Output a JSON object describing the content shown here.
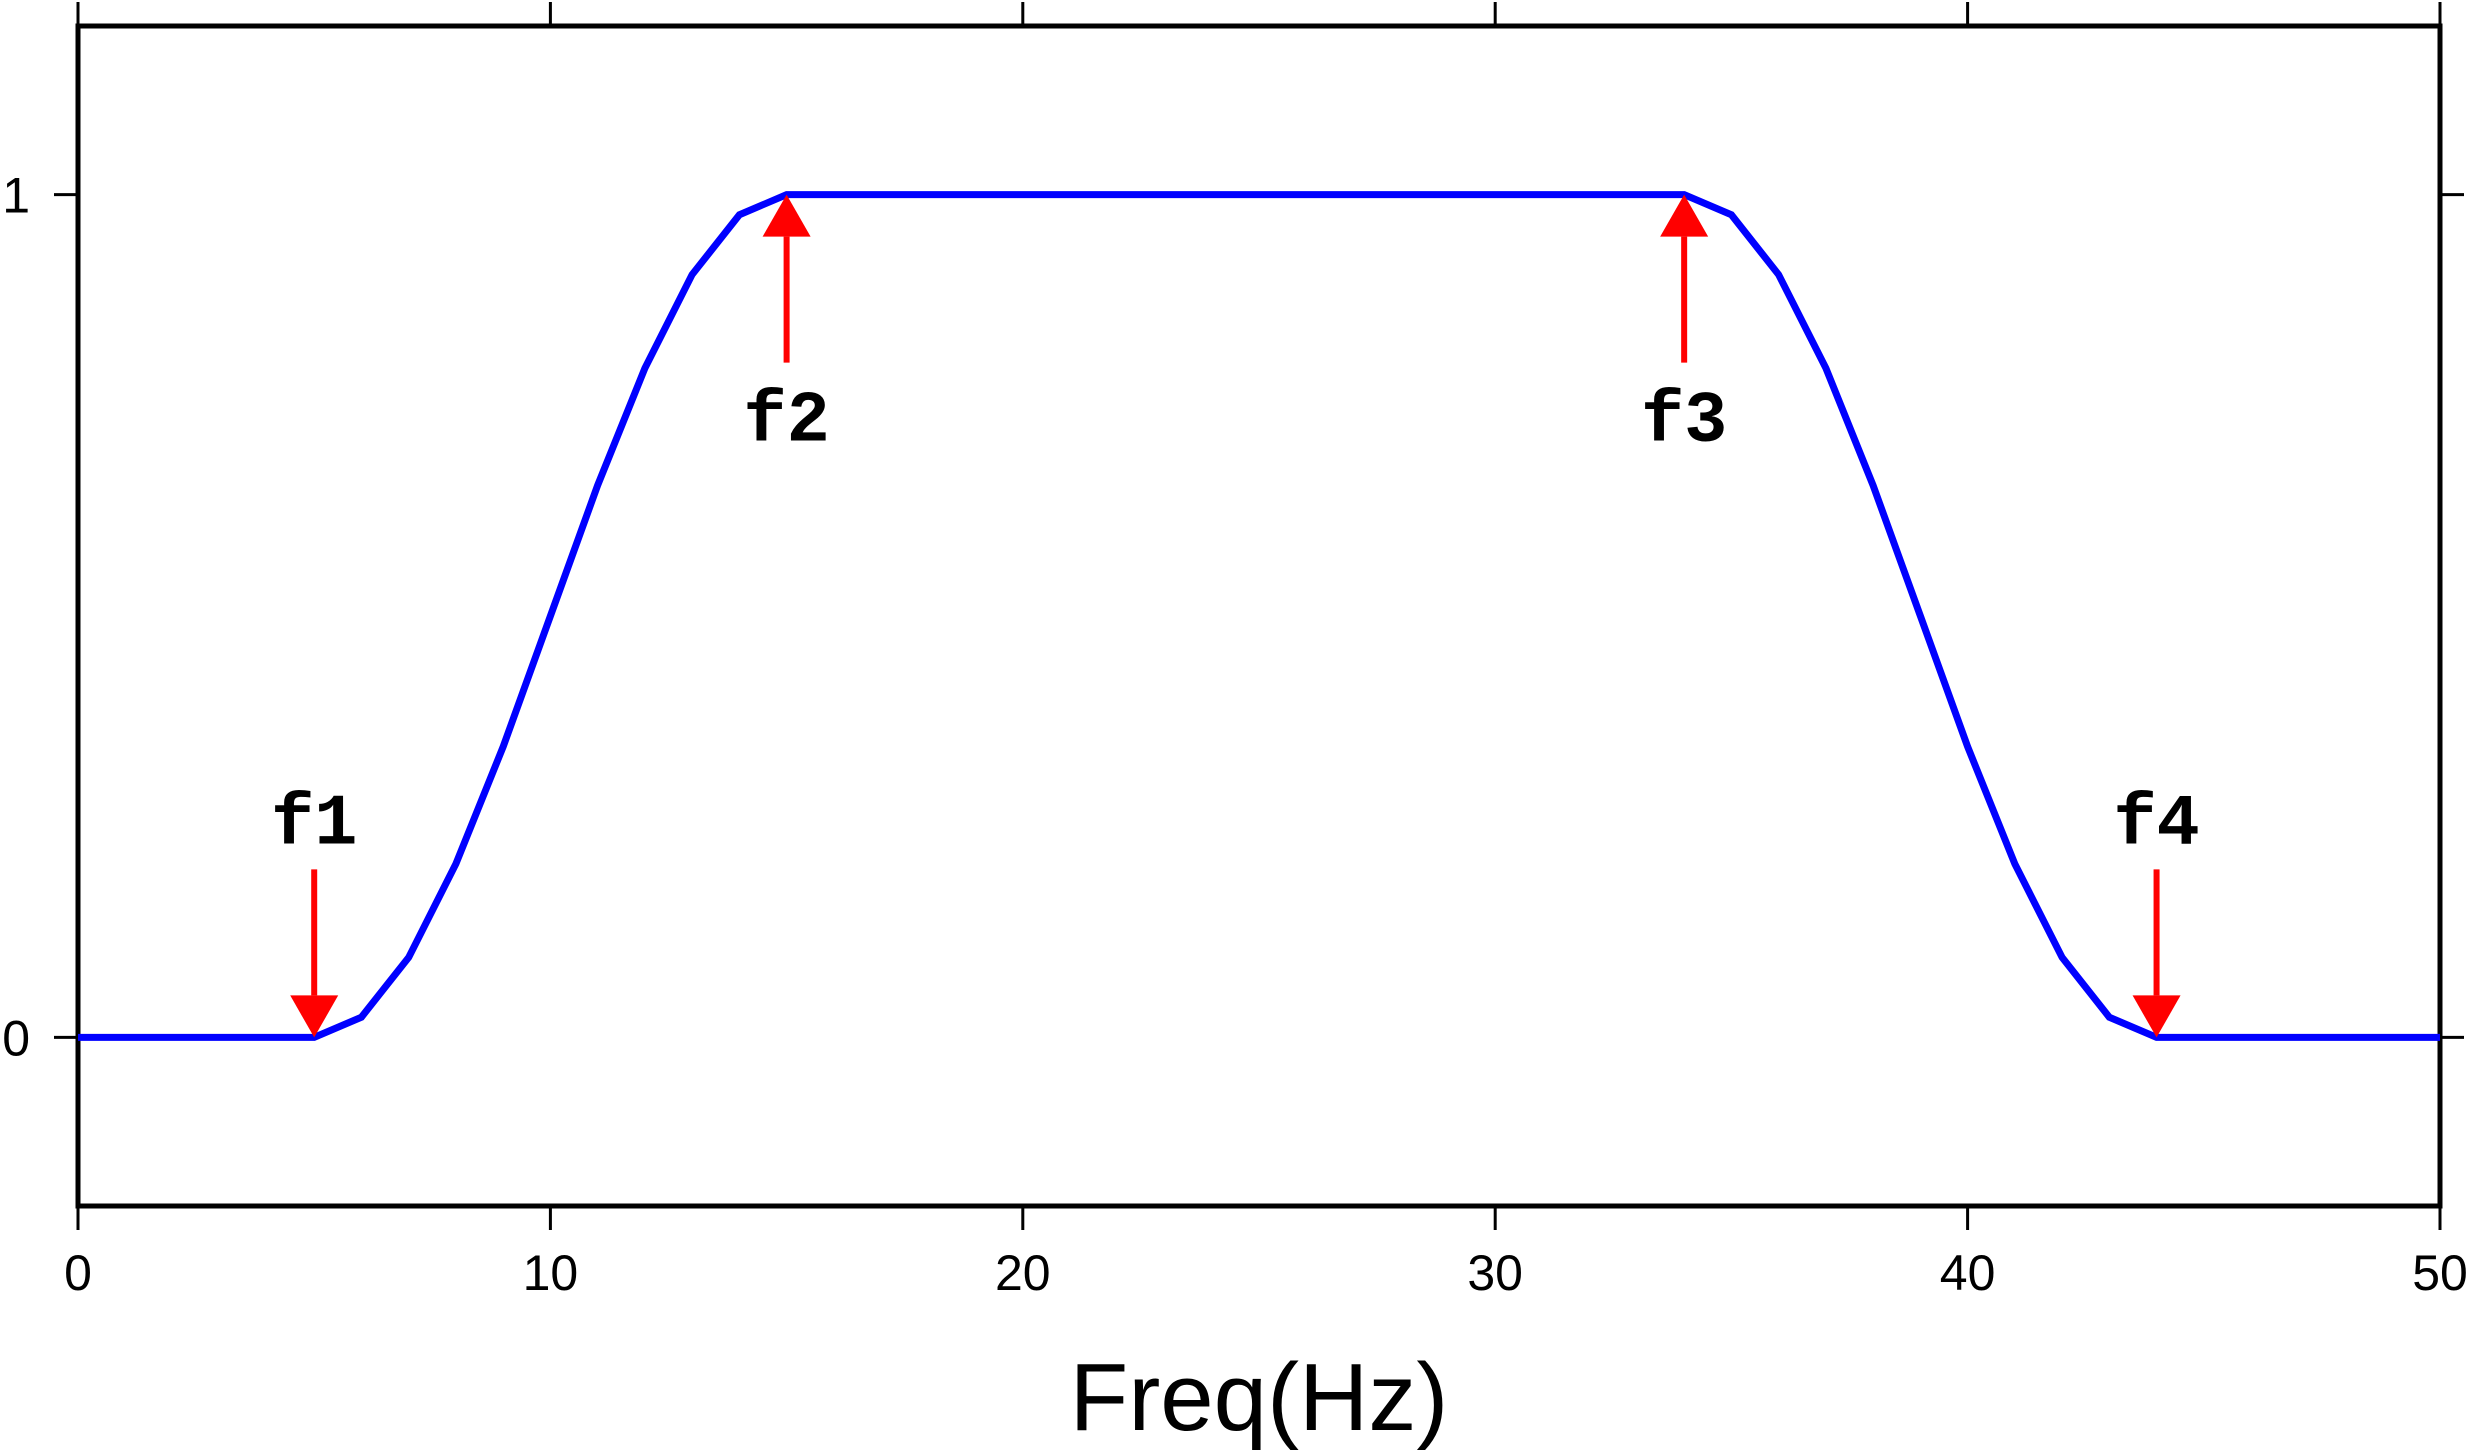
{
  "chart_data": {
    "type": "line",
    "title": "",
    "xlabel": "Freq(Hz)",
    "ylabel": "",
    "xlim": [
      0,
      50
    ],
    "ylim": [
      -0.2,
      1.2
    ],
    "x_ticks": [
      0,
      10,
      20,
      30,
      40,
      50
    ],
    "x_tick_labels": [
      "0",
      "10",
      "20",
      "30",
      "40",
      "50"
    ],
    "y_ticks": [
      0,
      1
    ],
    "y_tick_labels": [
      "0",
      "1"
    ],
    "grid": false,
    "series": [
      {
        "color": "#0000ff",
        "x": [
          0,
          5,
          6,
          7,
          8,
          9,
          10,
          11,
          12,
          13,
          14,
          15,
          34,
          35,
          36,
          37,
          38,
          39,
          40,
          41,
          42,
          43,
          44,
          50
        ],
        "y": [
          0,
          0,
          0.024,
          0.095,
          0.206,
          0.345,
          0.5,
          0.655,
          0.794,
          0.905,
          0.976,
          1,
          1,
          0.976,
          0.905,
          0.794,
          0.655,
          0.5,
          0.345,
          0.206,
          0.095,
          0.024,
          0,
          0
        ]
      }
    ],
    "annotations": [
      {
        "label": "f1",
        "x": 5,
        "y": 0,
        "direction": "down",
        "color": "#ff0000"
      },
      {
        "label": "f2",
        "x": 15,
        "y": 1,
        "direction": "up",
        "color": "#ff0000"
      },
      {
        "label": "f3",
        "x": 34,
        "y": 1,
        "direction": "up",
        "color": "#ff0000"
      },
      {
        "label": "f4",
        "x": 44,
        "y": 0,
        "direction": "down",
        "color": "#ff0000"
      }
    ]
  }
}
